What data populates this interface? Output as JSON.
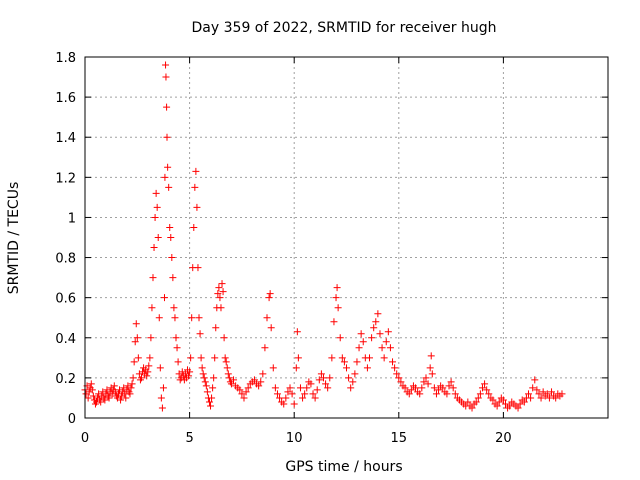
{
  "chart_data": {
    "type": "scatter",
    "title": "Day 359 of 2022, SRMTID for receiver hugh",
    "xlabel": "GPS time / hours",
    "ylabel": "SRMTID / TECUs",
    "xlim": [
      0,
      25
    ],
    "ylim": [
      0,
      1.8
    ],
    "xticks": [
      0,
      5,
      10,
      15,
      20
    ],
    "yticks": [
      0,
      0.2,
      0.4,
      0.6,
      0.8,
      1,
      1.2,
      1.4,
      1.6,
      1.8
    ],
    "xtick_labels": [
      "0",
      "5",
      "10",
      "15",
      "20"
    ],
    "ytick_labels": [
      "0",
      "0.2",
      "0.4",
      "0.6",
      "0.8",
      "1",
      "1.2",
      "1.4",
      "1.6",
      "1.8"
    ],
    "grid": true,
    "marker": "+",
    "color": "#ff0000",
    "series": [
      {
        "name": "SRMTID",
        "points": [
          [
            0.0,
            0.14
          ],
          [
            0.05,
            0.12
          ],
          [
            0.1,
            0.16
          ],
          [
            0.15,
            0.1
          ],
          [
            0.2,
            0.13
          ],
          [
            0.25,
            0.15
          ],
          [
            0.3,
            0.17
          ],
          [
            0.35,
            0.14
          ],
          [
            0.4,
            0.11
          ],
          [
            0.45,
            0.09
          ],
          [
            0.5,
            0.07
          ],
          [
            0.55,
            0.08
          ],
          [
            0.6,
            0.1
          ],
          [
            0.65,
            0.12
          ],
          [
            0.7,
            0.09
          ],
          [
            0.75,
            0.08
          ],
          [
            0.8,
            0.11
          ],
          [
            0.85,
            0.13
          ],
          [
            0.9,
            0.1
          ],
          [
            0.95,
            0.09
          ],
          [
            1.0,
            0.12
          ],
          [
            1.05,
            0.14
          ],
          [
            1.1,
            0.11
          ],
          [
            1.15,
            0.1
          ],
          [
            1.2,
            0.13
          ],
          [
            1.25,
            0.15
          ],
          [
            1.3,
            0.12
          ],
          [
            1.35,
            0.14
          ],
          [
            1.4,
            0.16
          ],
          [
            1.45,
            0.13
          ],
          [
            1.5,
            0.11
          ],
          [
            1.55,
            0.1
          ],
          [
            1.6,
            0.12
          ],
          [
            1.65,
            0.14
          ],
          [
            1.7,
            0.09
          ],
          [
            1.75,
            0.11
          ],
          [
            1.8,
            0.13
          ],
          [
            1.85,
            0.15
          ],
          [
            1.9,
            0.12
          ],
          [
            1.95,
            0.1
          ],
          [
            2.0,
            0.14
          ],
          [
            2.05,
            0.16
          ],
          [
            2.1,
            0.13
          ],
          [
            2.15,
            0.12
          ],
          [
            2.2,
            0.15
          ],
          [
            2.25,
            0.17
          ],
          [
            2.3,
            0.2
          ],
          [
            2.35,
            0.28
          ],
          [
            2.4,
            0.38
          ],
          [
            2.45,
            0.47
          ],
          [
            2.5,
            0.4
          ],
          [
            2.55,
            0.3
          ],
          [
            2.6,
            0.22
          ],
          [
            2.65,
            0.19
          ],
          [
            2.7,
            0.2
          ],
          [
            2.75,
            0.23
          ],
          [
            2.8,
            0.25
          ],
          [
            2.85,
            0.22
          ],
          [
            2.9,
            0.24
          ],
          [
            2.95,
            0.21
          ],
          [
            3.0,
            0.23
          ],
          [
            3.05,
            0.26
          ],
          [
            3.1,
            0.3
          ],
          [
            3.15,
            0.4
          ],
          [
            3.2,
            0.55
          ],
          [
            3.25,
            0.7
          ],
          [
            3.3,
            0.85
          ],
          [
            3.35,
            1.0
          ],
          [
            3.4,
            1.12
          ],
          [
            3.45,
            1.05
          ],
          [
            3.5,
            0.9
          ],
          [
            3.55,
            0.5
          ],
          [
            3.6,
            0.25
          ],
          [
            3.65,
            0.1
          ],
          [
            3.7,
            0.05
          ],
          [
            3.75,
            0.15
          ],
          [
            3.8,
            0.6
          ],
          [
            3.82,
            1.2
          ],
          [
            3.85,
            1.76
          ],
          [
            3.87,
            1.7
          ],
          [
            3.9,
            1.55
          ],
          [
            3.92,
            1.4
          ],
          [
            3.95,
            1.25
          ],
          [
            4.0,
            1.15
          ],
          [
            4.05,
            0.95
          ],
          [
            4.1,
            0.9
          ],
          [
            4.15,
            0.8
          ],
          [
            4.2,
            0.7
          ],
          [
            4.25,
            0.55
          ],
          [
            4.3,
            0.5
          ],
          [
            4.35,
            0.4
          ],
          [
            4.4,
            0.35
          ],
          [
            4.45,
            0.28
          ],
          [
            4.5,
            0.22
          ],
          [
            4.55,
            0.19
          ],
          [
            4.6,
            0.2
          ],
          [
            4.65,
            0.23
          ],
          [
            4.7,
            0.21
          ],
          [
            4.75,
            0.19
          ],
          [
            4.8,
            0.22
          ],
          [
            4.85,
            0.2
          ],
          [
            4.9,
            0.24
          ],
          [
            4.95,
            0.21
          ],
          [
            5.0,
            0.23
          ],
          [
            5.05,
            0.3
          ],
          [
            5.1,
            0.5
          ],
          [
            5.15,
            0.75
          ],
          [
            5.2,
            0.95
          ],
          [
            5.25,
            1.15
          ],
          [
            5.3,
            1.23
          ],
          [
            5.35,
            1.05
          ],
          [
            5.4,
            0.75
          ],
          [
            5.45,
            0.5
          ],
          [
            5.5,
            0.42
          ],
          [
            5.55,
            0.3
          ],
          [
            5.6,
            0.25
          ],
          [
            5.65,
            0.22
          ],
          [
            5.7,
            0.2
          ],
          [
            5.75,
            0.18
          ],
          [
            5.8,
            0.16
          ],
          [
            5.85,
            0.13
          ],
          [
            5.9,
            0.1
          ],
          [
            5.95,
            0.08
          ],
          [
            6.0,
            0.06
          ],
          [
            6.05,
            0.1
          ],
          [
            6.1,
            0.15
          ],
          [
            6.15,
            0.2
          ],
          [
            6.2,
            0.3
          ],
          [
            6.25,
            0.45
          ],
          [
            6.3,
            0.55
          ],
          [
            6.35,
            0.62
          ],
          [
            6.4,
            0.65
          ],
          [
            6.45,
            0.6
          ],
          [
            6.5,
            0.55
          ],
          [
            6.55,
            0.67
          ],
          [
            6.6,
            0.63
          ],
          [
            6.65,
            0.4
          ],
          [
            6.7,
            0.3
          ],
          [
            6.75,
            0.28
          ],
          [
            6.8,
            0.25
          ],
          [
            6.85,
            0.22
          ],
          [
            6.9,
            0.2
          ],
          [
            6.95,
            0.18
          ],
          [
            7.0,
            0.17
          ],
          [
            7.1,
            0.19
          ],
          [
            7.2,
            0.16
          ],
          [
            7.3,
            0.15
          ],
          [
            7.4,
            0.14
          ],
          [
            7.5,
            0.12
          ],
          [
            7.6,
            0.1
          ],
          [
            7.7,
            0.13
          ],
          [
            7.8,
            0.15
          ],
          [
            7.9,
            0.17
          ],
          [
            8.0,
            0.18
          ],
          [
            8.1,
            0.19
          ],
          [
            8.2,
            0.17
          ],
          [
            8.3,
            0.16
          ],
          [
            8.4,
            0.18
          ],
          [
            8.5,
            0.22
          ],
          [
            8.6,
            0.35
          ],
          [
            8.7,
            0.5
          ],
          [
            8.8,
            0.6
          ],
          [
            8.85,
            0.62
          ],
          [
            8.9,
            0.45
          ],
          [
            9.0,
            0.25
          ],
          [
            9.1,
            0.15
          ],
          [
            9.2,
            0.12
          ],
          [
            9.3,
            0.1
          ],
          [
            9.4,
            0.08
          ],
          [
            9.5,
            0.07
          ],
          [
            9.6,
            0.1
          ],
          [
            9.7,
            0.13
          ],
          [
            9.8,
            0.15
          ],
          [
            9.9,
            0.12
          ],
          [
            10.0,
            0.07
          ],
          [
            10.1,
            0.25
          ],
          [
            10.15,
            0.43
          ],
          [
            10.2,
            0.3
          ],
          [
            10.3,
            0.15
          ],
          [
            10.4,
            0.1
          ],
          [
            10.5,
            0.12
          ],
          [
            10.6,
            0.15
          ],
          [
            10.7,
            0.18
          ],
          [
            10.8,
            0.17
          ],
          [
            10.9,
            0.12
          ],
          [
            11.0,
            0.1
          ],
          [
            11.1,
            0.14
          ],
          [
            11.2,
            0.19
          ],
          [
            11.3,
            0.22
          ],
          [
            11.4,
            0.2
          ],
          [
            11.5,
            0.17
          ],
          [
            11.6,
            0.15
          ],
          [
            11.7,
            0.2
          ],
          [
            11.8,
            0.3
          ],
          [
            11.9,
            0.48
          ],
          [
            12.0,
            0.6
          ],
          [
            12.05,
            0.65
          ],
          [
            12.1,
            0.55
          ],
          [
            12.2,
            0.4
          ],
          [
            12.3,
            0.3
          ],
          [
            12.4,
            0.28
          ],
          [
            12.5,
            0.25
          ],
          [
            12.6,
            0.2
          ],
          [
            12.7,
            0.15
          ],
          [
            12.8,
            0.18
          ],
          [
            12.9,
            0.22
          ],
          [
            13.0,
            0.28
          ],
          [
            13.1,
            0.35
          ],
          [
            13.2,
            0.42
          ],
          [
            13.3,
            0.38
          ],
          [
            13.4,
            0.3
          ],
          [
            13.5,
            0.25
          ],
          [
            13.6,
            0.3
          ],
          [
            13.7,
            0.4
          ],
          [
            13.8,
            0.45
          ],
          [
            13.9,
            0.48
          ],
          [
            14.0,
            0.52
          ],
          [
            14.1,
            0.42
          ],
          [
            14.2,
            0.35
          ],
          [
            14.3,
            0.3
          ],
          [
            14.4,
            0.38
          ],
          [
            14.5,
            0.43
          ],
          [
            14.6,
            0.35
          ],
          [
            14.7,
            0.28
          ],
          [
            14.8,
            0.25
          ],
          [
            14.9,
            0.22
          ],
          [
            15.0,
            0.2
          ],
          [
            15.1,
            0.18
          ],
          [
            15.2,
            0.16
          ],
          [
            15.3,
            0.15
          ],
          [
            15.4,
            0.13
          ],
          [
            15.5,
            0.12
          ],
          [
            15.6,
            0.14
          ],
          [
            15.7,
            0.16
          ],
          [
            15.8,
            0.15
          ],
          [
            15.9,
            0.13
          ],
          [
            16.0,
            0.12
          ],
          [
            16.1,
            0.15
          ],
          [
            16.2,
            0.18
          ],
          [
            16.3,
            0.2
          ],
          [
            16.4,
            0.17
          ],
          [
            16.5,
            0.25
          ],
          [
            16.55,
            0.31
          ],
          [
            16.6,
            0.22
          ],
          [
            16.7,
            0.15
          ],
          [
            16.8,
            0.12
          ],
          [
            16.9,
            0.14
          ],
          [
            17.0,
            0.16
          ],
          [
            17.1,
            0.15
          ],
          [
            17.2,
            0.13
          ],
          [
            17.3,
            0.12
          ],
          [
            17.4,
            0.16
          ],
          [
            17.5,
            0.18
          ],
          [
            17.6,
            0.15
          ],
          [
            17.7,
            0.12
          ],
          [
            17.8,
            0.1
          ],
          [
            17.9,
            0.09
          ],
          [
            18.0,
            0.08
          ],
          [
            18.1,
            0.07
          ],
          [
            18.2,
            0.06
          ],
          [
            18.3,
            0.08
          ],
          [
            18.4,
            0.06
          ],
          [
            18.5,
            0.05
          ],
          [
            18.6,
            0.07
          ],
          [
            18.7,
            0.08
          ],
          [
            18.8,
            0.1
          ],
          [
            18.9,
            0.12
          ],
          [
            19.0,
            0.15
          ],
          [
            19.1,
            0.17
          ],
          [
            19.2,
            0.14
          ],
          [
            19.3,
            0.12
          ],
          [
            19.4,
            0.1
          ],
          [
            19.5,
            0.09
          ],
          [
            19.6,
            0.07
          ],
          [
            19.7,
            0.06
          ],
          [
            19.8,
            0.08
          ],
          [
            19.9,
            0.1
          ],
          [
            20.0,
            0.09
          ],
          [
            20.1,
            0.07
          ],
          [
            20.2,
            0.05
          ],
          [
            20.3,
            0.06
          ],
          [
            20.4,
            0.08
          ],
          [
            20.5,
            0.07
          ],
          [
            20.6,
            0.06
          ],
          [
            20.7,
            0.05
          ],
          [
            20.8,
            0.07
          ],
          [
            20.9,
            0.09
          ],
          [
            21.0,
            0.08
          ],
          [
            21.1,
            0.1
          ],
          [
            21.2,
            0.12
          ],
          [
            21.3,
            0.1
          ],
          [
            21.4,
            0.15
          ],
          [
            21.5,
            0.19
          ],
          [
            21.6,
            0.14
          ],
          [
            21.7,
            0.12
          ],
          [
            21.8,
            0.1
          ],
          [
            21.9,
            0.13
          ],
          [
            22.0,
            0.11
          ],
          [
            22.1,
            0.12
          ],
          [
            22.2,
            0.1
          ],
          [
            22.3,
            0.13
          ],
          [
            22.4,
            0.11
          ],
          [
            22.5,
            0.1
          ],
          [
            22.6,
            0.12
          ],
          [
            22.7,
            0.11
          ],
          [
            22.8,
            0.12
          ]
        ]
      }
    ]
  }
}
